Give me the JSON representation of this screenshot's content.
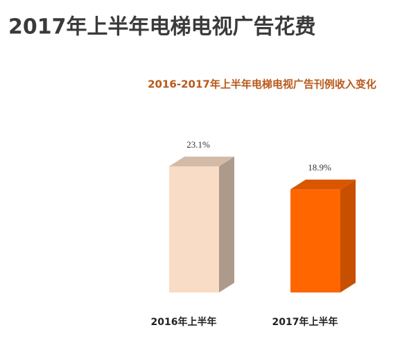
{
  "chart_data": {
    "type": "bar3d",
    "title": "2017年上半年电梯电视广告花费",
    "subtitle": "2016-2017年上半年电梯电视广告刊例收入变化",
    "categories": [
      "2016年上半年",
      "2017年上半年"
    ],
    "values": [
      23.1,
      18.9
    ],
    "value_labels": [
      "23.1%",
      "18.9%"
    ],
    "colors": [
      "#f8dcc6",
      "#ff6600"
    ]
  }
}
